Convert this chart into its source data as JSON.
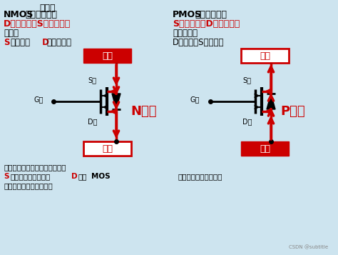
{
  "bg_color": "#cde4ef",
  "title_text": "反证：",
  "left_title1_a": "NMOS",
  "left_title1_b": "管正确接法：",
  "left_title2": "D极接输入；S极接输出。",
  "left_title3": "假如：",
  "left_title4_s": "S",
  "left_title4_b": "接输入，",
  "left_title4_d": " D",
  "left_title4_e": "接输出呢？",
  "right_title1_a": "PMOS",
  "right_title1_b": "管正确接法：",
  "right_title2": "S极接输入；D极接输出。",
  "right_title3": "假如反接：",
  "right_title4": "D接输入，S接输出。",
  "left_box_top": "输入",
  "left_box_bottom": "输出",
  "right_box_top": "输出",
  "right_box_bottom": "输入",
  "n_label": "N沟道",
  "p_label": "P沟道",
  "s_label": "S极",
  "g_label": "G极",
  "d_label": "D极",
  "left_bottom1": "由于寄生二极管直接导通，因此",
  "left_bottom2a": "S",
  "left_bottom2b": "极电压可以无条件到",
  "left_bottom2c": "D",
  "left_bottom2d": "极，",
  "left_bottom2e": "MOS",
  "left_bottom3": "管就失去了开关的作用。",
  "right_bottom": "同样失去了开关作用。",
  "watermark": "CSDN @subtitle",
  "red": "#cc0000",
  "black": "#000000",
  "white": "#ffffff"
}
